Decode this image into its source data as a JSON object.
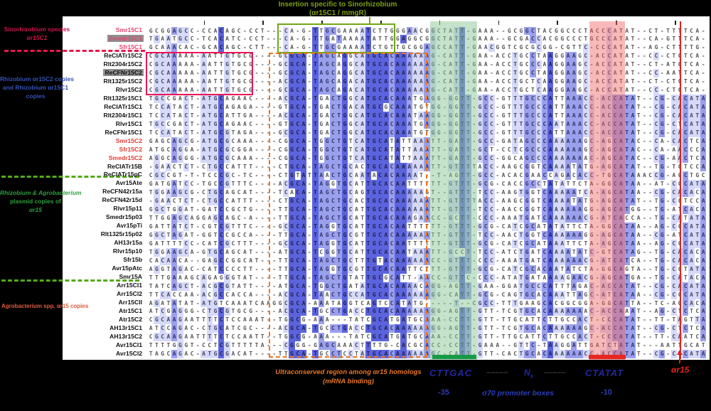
{
  "colors": {
    "cons_dark": "#5b63dd",
    "cons_mid": "#9aa0ec",
    "cons_light": "#d6d9f8",
    "crimson": "#d0104c",
    "blue_group": "#3452b4",
    "green_group": "#2f9e3f",
    "orangered_group": "#e25a3a",
    "olive": "#7da012",
    "orange_box": "#e87722",
    "navy": "#23279e",
    "red_marker": "#e0211a",
    "green_bar": "#169a47",
    "red_bar": "#e8251f"
  },
  "top_annotation": {
    "line1": "Insertion specific to Sinorhizobium",
    "line2": "(αr15C1 / mmgR)"
  },
  "left_panel": {
    "sino_group": {
      "line1": "Sinorhizobium species",
      "line2": "αr15C1"
    },
    "rhizo_group": {
      "line1": "Rhizobium αr15C2 copies",
      "line2": "and Rhizobium αr15C1",
      "line3": "copies"
    },
    "plasmid_group": {
      "line1": "Rhizobium & Agrobacterium",
      "line2": "plasmid copies of",
      "line3": "αr15"
    },
    "agro_group": {
      "line1": "Agrobacterium spp. αr15 copies"
    }
  },
  "bottom_annotation": {
    "orange_line1": "Ultraconserved region among αr15 homologs",
    "orange_line2": "(mRNA binding)",
    "minus35_seq": "CTTGAC",
    "spacer_dashes_1": "–––––",
    "n_label": "N",
    "n_sub": "x",
    "spacer_dashes_2": "–––––",
    "minus10_seq": "CTATAT",
    "minus35": "-35",
    "sigma_label": "σ70 promoter boxes",
    "minus10": "-10",
    "tss_label": "αr15"
  },
  "names": [
    {
      "label": "Smr15C1",
      "group": "pink",
      "hl": false
    },
    {
      "label": "Smedr15C1",
      "group": "pink",
      "hl": true
    },
    {
      "label": "Sfr15C1",
      "group": "pink",
      "hl": false
    },
    {
      "label": "ReCIATr15C2",
      "group": "black",
      "hl": false
    },
    {
      "label": "Rlt2304r15C2",
      "group": "black",
      "hl": false
    },
    {
      "label": "ReCFNr15C2",
      "group": "black",
      "hl": true
    },
    {
      "label": "Rlt1325r15C2",
      "group": "black",
      "hl": false
    },
    {
      "label": "Rlvr15C2",
      "group": "black",
      "hl": false
    },
    {
      "label": "Rlt1325r15C1",
      "group": "black",
      "hl": false
    },
    {
      "label": "ReCIATr15C1",
      "group": "black",
      "hl": false
    },
    {
      "label": "Rlt2304r15C1",
      "group": "black",
      "hl": false
    },
    {
      "label": "Rlvr15C1",
      "group": "black",
      "hl": false
    },
    {
      "label": "ReCFNr15C1",
      "group": "black",
      "hl": false
    },
    {
      "label": "Smr15C2",
      "group": "red",
      "hl": false
    },
    {
      "label": "Sfr15C2",
      "group": "red",
      "hl": false
    },
    {
      "label": "Smedr15C2",
      "group": "red",
      "hl": false
    },
    {
      "label": "ReCIATr15B",
      "group": "black",
      "hl": false
    },
    {
      "label": "ReCIATr15pC",
      "group": "black",
      "hl": false
    },
    {
      "label": "Avr15Ate",
      "group": "black",
      "hl": false
    },
    {
      "label": "ReCFN42r15a",
      "group": "black",
      "hl": false
    },
    {
      "label": "ReCFN42r15d",
      "group": "black",
      "hl": false
    },
    {
      "label": "Rlvr15p11",
      "group": "black",
      "hl": false
    },
    {
      "label": "Smedr15p03",
      "group": "black",
      "hl": false
    },
    {
      "label": "Avr15pTi",
      "group": "black",
      "hl": false
    },
    {
      "label": "Rlt1325r15p02",
      "group": "black",
      "hl": false
    },
    {
      "label": "AH13r15a",
      "group": "black",
      "hl": false
    },
    {
      "label": "Rlvr15p10",
      "group": "black",
      "hl": false
    },
    {
      "label": "Sfr15b",
      "group": "black",
      "hl": false
    },
    {
      "label": "Avr15pAtc",
      "group": "black",
      "hl": false
    },
    {
      "label": "Smr15A",
      "group": "black",
      "hl": false
    },
    {
      "label": "Arr15Cl1",
      "group": "black",
      "hl": false
    },
    {
      "label": "Arr15Cl2",
      "group": "black",
      "hl": false
    },
    {
      "label": "Arr15CII",
      "group": "black",
      "hl": false
    },
    {
      "label": "Atr15C1",
      "group": "black",
      "hl": false
    },
    {
      "label": "Atr15C2",
      "group": "black",
      "hl": false
    },
    {
      "label": "AH13r15C1",
      "group": "black",
      "hl": false
    },
    {
      "label": "AH13r15C2",
      "group": "black",
      "hl": false
    },
    {
      "label": "Avr15Cl1",
      "group": "black",
      "hl": false
    },
    {
      "label": "Avr15Cl2",
      "group": "black",
      "hl": false
    }
  ],
  "alignment": {
    "sequences": [
      "GCGGAGCC-CCACAGC-CCT---CA-G-TTGCGAAAATCTTGGGAACGGCTATT-GAAA--GCGGCTACGGCCCTACCCATAT--CT-TTTTCA",
      "TGAATGCC-TCACATC-CCT---CA-G-TTGATAAAATATTGGAGGCGGCTATT-GAAA--GCGACCACGGCCCTGCCCATAT--CA-GTTTCA",
      "GCAAACAC-GCACAGC-CTT---CA-G-TTGCGAAAATCTGTTGCGGAGCCATT-GAACGGTCGCGCGG-CGTTC-CCCATAT--AG-CTTTTG",
      "CGCAAAAA-AATTGTGCG----GCGCA-TAGCAGGCATGCACAAAAAAG-CATT-GAA-ACCTGCCTAAGGAAGC-ACCATAT--CC-CTCTCA",
      "CGCAAAAA-AATTGTGCG----GCGCA-TAGCAGGCATGCACAAAAAAG-CATT-GAA-ACCTGCCCAAGGAAGC-ACCATAT--CT-ATCTCA",
      "CGCAAAAA-AATTGTGCG----GCGCA-TAGCAGGCATGCACAAAAAAG-CATT-GAA-ACCTGCCTAAGGAAGC-ACCATAT--CC-AATTCA",
      "CGCAAAAA-AATTGTGCG----ACGCA-TAGCAGACATGCACAAAAAAG-CATT-GAA-ACCTGCTCAAGGAAGC-ACCATAT--CT-CTCTCA",
      "CGCAAAAA-AATTGTGCG----GCGCA-TAGCAGACATGCACAAAAAAG-CATT-GAA-ACCTGCTCAAGGAAGC-ACCATAT--CC-CTCTCA",
      "TGCCGACT-ATGCAGAAC----ACGCA-TGACTGGCATGCACAAATGAGG-GGTT-GCC-GTTTGCCCATTAAACC-ACCATAT--CG-CACATA",
      "TCCATACT-ATGCAGAGA----GTGCA-TGACTGACATGCGCAAATGTGG-GGTT-GCC-GTTTGCCCATTAAACC-ACCATAT--CG-CACATA",
      "TCCATACT-ATGCATTGA----ACGCA-TGACTGGCATGCACAAATAAGG-GGTT-GCC-GTTTGCCCATTAAACC-ACCATAT--CG-CACATA",
      "TGCCGACT-ATGCAGAAC----GTGCA-TGACTGGCATGCACAAATGAGG-GGTT-GCC-GTTTGCCCAATAAACC-ACCATAT--CG-CTCATA",
      "TCCATACT-ATGCGTAGA----GCGCA-TGACTGGCATGCACAAATGTGG-GGTT-GCC-GTTTGCCCATTAAACC-ACCATAT--CG-CACATA",
      "GAGCAGCG-ATGCGCAAA----CGGCA-TGGCTGTCATGCATATTAAATT-GATT-GCC-GATAGCCCAAAAAAGC-AGCATAC--CA-CACTCA",
      "ATGCAGGA-ATGCGCGGA----CGGCA-TGGCTGTCATGCATATTAAATT-GATT-GCT-CCTCGCCCAAAAAAGC-AGCATAC--CA-AACCCA",
      "AGGCAGGG-ATGCGCAAA----CGGCA-TGGCTGTCATGCATATTAAATT-GATT-GCC-GGCAGCCCAAAAAAAC-AGCATAC--CG-AACTCA",
      "-GAACTCT-CTGCCATTT----CTGCA-TAGCTGCACTGCACAAAAAATT-GTTTTACC-AAGCGGTCAAAATATG-AGCATAT--TG-TCTCCA",
      "CGCCGT-T-TCCCGC-TC----CTGTATTAACTGCAATACACAAAAT--T-AGTT-GCC-ACACGAACCAGACACC-TGCATAAACCG-ACCTGC",
      "GATGATCC-TGCCGTTTC----ACGCA-TAGGTGCATTGCACAATTTTTT-GTTT-GCG-CACCGCCTATATTCTA-GGCATAA--AT-CCCATA",
      "TGGAAGCG-CTGCAGCAT----TCACA-TAGCTGCAGTGCACAAAAAGT--GTTT-TCC-AAGTGGTCAAAAATCA-AGCATAA--CG-CACACA",
      "-GAACTCT-CTGCCATTT----CTGCA-TAGCTGCACTGCACAAAAAATT-GTTTTACC-AAGCGGTCAAAATATG-AGCATAT--TG-CCTCCA",
      "GGCTGGAT-GATCCGCTG----TTGCA-TAGCTGCATTGCACAAAAAATT-GTTT-TCC-AACCGGTCAAAAAAGG-AGCATGG--TG-ATCACA",
      "TTGGAGCAGGAGCAGC-A----TTGCA-TAGCTGCATTGCACAAAGAACC-GCTT-CCC-AAATGATCAAAAAACG-ATCACCA--TG-CATATA",
      "GATTATCT-CGTCGTTTC----GCGCA-TAGGTGCATTGCACAATTTTTT-GTTT-GCG-CATCGCATATATTCTA-GGCATAA--AG-CCCATA",
      "GGCTAGAT-GGTCCGCCA----TTGCA-TAGCTGCGTTGCACAAAAAATT-GTTT-TCC-AACTGGTCAAAAAAGG-AGCATAA--CG-ATCATA",
      "GATTTTCC-CATCGCTTT----GCGCA-TAGGTGCATTGCACAATTTTTT-GTTT-GCG-CATCGCATAAATTCTA-AGCATAA--AG-CCCATA",
      "TGGAAGCA-GTGCAGCAT----ATGCA-TCGGTGCATTGCACAATAAATT-GCCT-TCC-ATCTGATCAAAATATC-GTCATAG--TG-CACACA",
      "CACAACA--GAGCCGGCAT---TTGCA-TAGCTGCTTTGTACAAAAAACC-GTTT-CCC-AAATGATCAAAAAACG-ATCATCA--TG-CACACA",
      "AGGTAGAC-CATCCCCTT----TTGCA-TAGGTGCGTTGCACAATTCTTT-GTTT-GCG-CATCGCACAATATCTA-GGCAGTA--TG-CCTATA",
      "TTTGAAAGCAGAGGGTAT----TTGCA-TAGCTGTATTGCGCATT-AACC-GTTC-CCC-ATATGATAAAAGAACG-AGCATGA--TG-CATACA",
      "TATCAGCT-ACGCGTATT----ATGCA-TGGCTGATATGCACAAAACAGG-AGTT-GAA-GGATGCCCATTTAGAC-ACCATAT--CG-CACATA",
      "TTCACCAA-ACGCCACCA----ACGCA-TAACTGCCATGCACAAAAAAGG-CATT-GCG-CAGTGCACAAATTAGC-ATCATAA--CG-CCCATA",
      "AGATATAT-ATGTCAAATCAAGGCGCA-AAATAGGTCAGTCCATATG-----T--CGCC-TTTGAAGCACGGCGGA-GGCATTA--TC-AGCACA",
      "ATCGAGGG-CTGCGTGCG----ACGCA-TGCCTGACCTGCACAAAAAAGG-AGTT-GTT-TCGTGCACAAAAAAAC-ACCAAAT--AG-CTCTCA",
      "CGCAAGAATTTTCTCCAAAT--TGGCG-AAA---TATCGCATGATGCAAA-CCTT-GTT-TTGCATTCTTGCCACT-CCCATAT--TT-TAGTTA",
      "ATCCAGAC-CTGCATCGC----ACGCA-TGCCTGACCTGCACAAAAAAGG-AGTT-GTT-TCGTGCACAAAAAAGC-ACCATAT--CG-CTCTCA",
      "CGCAAGAATTTTCTCCAATT--TGGCG-AAA---TATCGCATGATGCAAA-CCTT-GTT-TTGCATTCTTGCCACT-CCCATAT--TT-CAATCA",
      "TTTTGGGT-CCTCGTTTTTA---CGGG-GAGCAAACTTTTG-CACGCACC-CCTT-GAAA--GTTC-TAAGGATTGATCTATAT---AATTGCATA",
      "TAGCAGAC-ATGCGACAT----TTGCA-TGCCTCCTATGCACAAAAAAGC-CATT-GTT-CACTGCACAAAAAACC-ACCATAT--CG-CTCATA"
    ]
  }
}
